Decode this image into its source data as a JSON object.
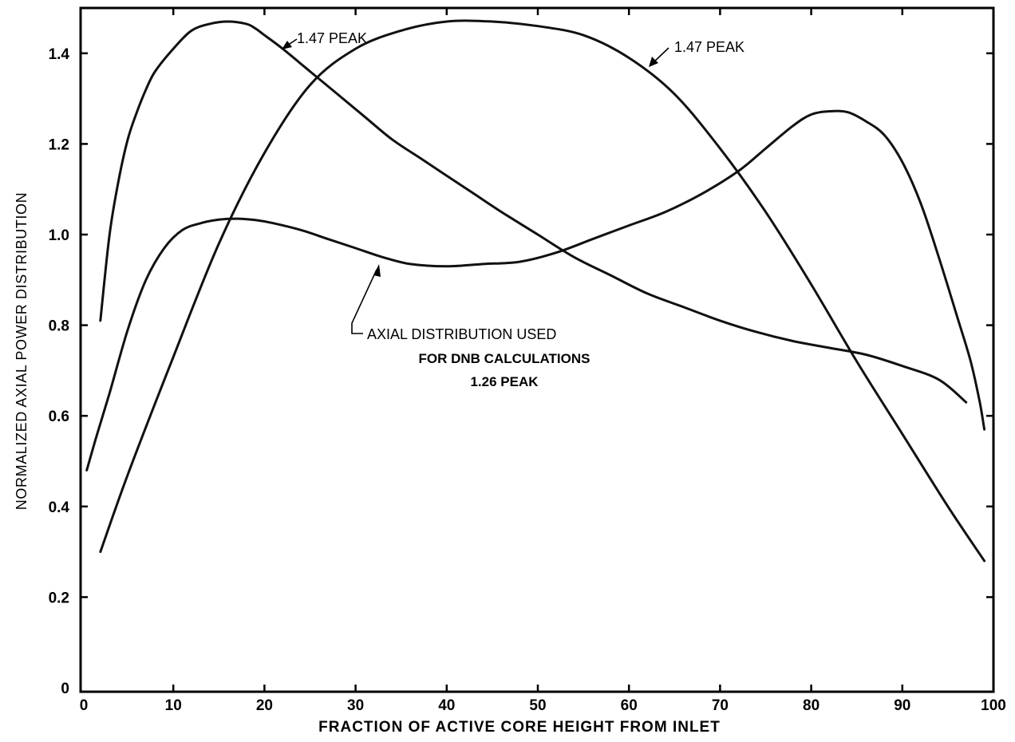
{
  "chart_data": {
    "type": "line",
    "xlabel": "FRACTION OF ACTIVE CORE HEIGHT FROM INLET",
    "ylabel": "NORMALIZED AXIAL POWER DISTRIBUTION",
    "xlim": [
      0,
      100
    ],
    "ylim": [
      0,
      1.5
    ],
    "x_ticks": [
      "0",
      "10",
      "20",
      "30",
      "40",
      "50",
      "60",
      "70",
      "80",
      "90",
      "100"
    ],
    "y_ticks": [
      "0",
      "0.2",
      "0.4",
      "0.6",
      "0.8",
      "1.0",
      "1.2",
      "1.4"
    ],
    "grid": false,
    "series": [
      {
        "x": [
          2,
          3,
          4,
          5,
          6,
          7,
          8,
          10,
          12,
          14,
          16,
          18,
          19,
          20,
          22,
          25,
          28,
          31,
          34,
          37,
          40,
          43,
          46,
          50,
          54,
          58,
          62,
          66,
          70,
          74,
          78,
          82,
          86,
          90,
          94,
          97
        ],
        "values": [
          0.81,
          1.0,
          1.12,
          1.21,
          1.27,
          1.32,
          1.36,
          1.41,
          1.45,
          1.465,
          1.47,
          1.465,
          1.455,
          1.44,
          1.41,
          1.36,
          1.31,
          1.26,
          1.21,
          1.17,
          1.13,
          1.09,
          1.05,
          1.0,
          0.95,
          0.91,
          0.87,
          0.84,
          0.81,
          0.785,
          0.765,
          0.75,
          0.735,
          0.71,
          0.68,
          0.63
        ]
      },
      {
        "x": [
          2,
          5,
          10,
          15,
          20,
          25,
          30,
          35,
          40,
          45,
          50,
          55,
          60,
          65,
          70,
          75,
          80,
          85,
          90,
          95,
          99
        ],
        "values": [
          0.3,
          0.47,
          0.73,
          0.98,
          1.18,
          1.33,
          1.41,
          1.45,
          1.47,
          1.47,
          1.46,
          1.44,
          1.39,
          1.31,
          1.19,
          1.05,
          0.89,
          0.72,
          0.56,
          0.4,
          0.28
        ]
      },
      {
        "x": [
          0.5,
          1.5,
          3,
          5,
          7,
          9,
          11,
          13,
          15,
          17,
          19,
          21,
          24,
          27,
          30,
          33,
          36,
          40,
          44,
          48,
          52,
          56,
          60,
          64,
          68,
          72,
          75,
          78,
          80,
          82,
          84,
          86,
          88,
          90,
          92,
          94,
          96,
          97.5,
          98.5,
          99
        ],
        "values": [
          0.48,
          0.55,
          0.65,
          0.79,
          0.9,
          0.97,
          1.01,
          1.025,
          1.033,
          1.035,
          1.032,
          1.025,
          1.01,
          0.99,
          0.97,
          0.95,
          0.935,
          0.93,
          0.935,
          0.94,
          0.96,
          0.99,
          1.02,
          1.05,
          1.09,
          1.14,
          1.19,
          1.24,
          1.265,
          1.272,
          1.27,
          1.25,
          1.22,
          1.16,
          1.07,
          0.95,
          0.82,
          0.72,
          0.63,
          0.57
        ]
      }
    ],
    "annotations": [
      {
        "text": "1.47 PEAK"
      },
      {
        "text": "1.47 PEAK"
      },
      {
        "lines": [
          "AXIAL DISTRIBUTION USED",
          "FOR DNB CALCULATIONS",
          "1.26 PEAK"
        ]
      }
    ]
  }
}
